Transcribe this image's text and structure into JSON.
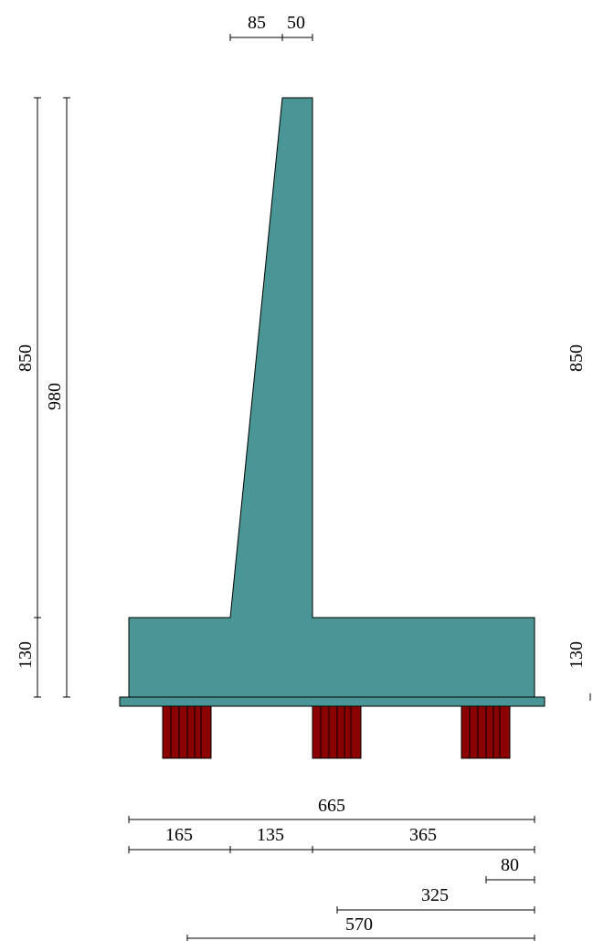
{
  "dimensions": {
    "top_toe_offset": "85",
    "top_stem_width": "50",
    "left_stem_height": "850",
    "left_total_height": "980",
    "left_base_thickness": "130",
    "right_stem_height": "850",
    "right_base_thickness": "130",
    "base_total_width": "665",
    "toe_length": "165",
    "stem_base_width": "135",
    "heel_length": "365",
    "right_pile_edge": "80",
    "right_pile_to_stem": "325",
    "pile_span": "570"
  },
  "colors": {
    "concrete": "#4a9696",
    "pile": "#8b0000",
    "line": "#000000"
  }
}
